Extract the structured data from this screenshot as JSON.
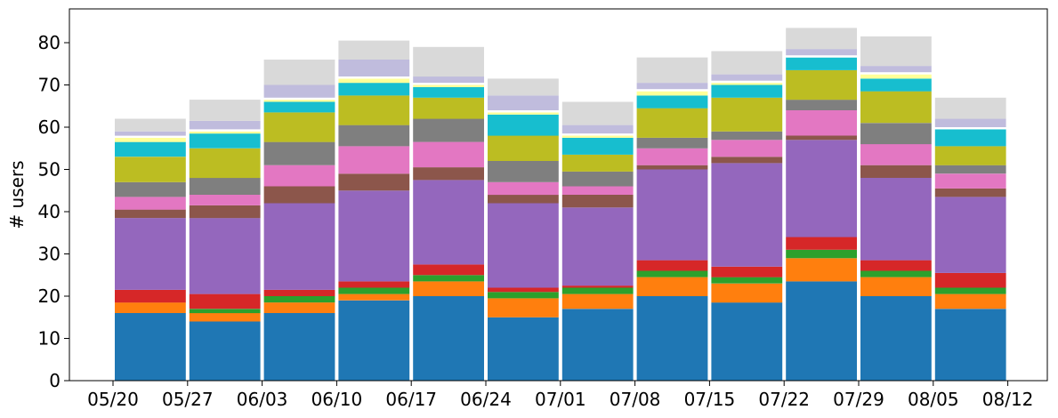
{
  "chart_data": {
    "type": "bar",
    "stacked": true,
    "title": "",
    "xlabel": "",
    "ylabel": "# users",
    "ylim": [
      0,
      88
    ],
    "yticks": [
      0,
      10,
      20,
      30,
      40,
      50,
      60,
      70,
      80
    ],
    "x_tick_labels": [
      "05/20",
      "05/27",
      "06/03",
      "06/10",
      "06/17",
      "06/24",
      "07/01",
      "07/08",
      "07/15",
      "07/22",
      "07/29",
      "08/05",
      "08/12"
    ],
    "grid": false,
    "legend": "none",
    "bars_per_week": 12,
    "series": [
      {
        "color": "#1f77b4",
        "values": [
          16,
          14,
          16,
          19,
          20,
          15,
          17,
          20,
          18.5,
          23.5,
          20,
          17
        ]
      },
      {
        "color": "#ff7f0e",
        "values": [
          2.5,
          2,
          2.5,
          1.5,
          3.5,
          4.5,
          3.5,
          4.5,
          4.5,
          5.5,
          4.5,
          3.5
        ]
      },
      {
        "color": "#2ca02c",
        "values": [
          0,
          1,
          1.5,
          1.5,
          1.5,
          1.5,
          1.5,
          1.5,
          1.5,
          2,
          1.5,
          1.5
        ]
      },
      {
        "color": "#d62728",
        "values": [
          3,
          3.5,
          1.5,
          1.5,
          2.5,
          1,
          0.5,
          2.5,
          2.5,
          3,
          2.5,
          3.5
        ]
      },
      {
        "color": "#9467bd",
        "values": [
          17,
          18,
          20.5,
          21.5,
          20,
          20,
          18.5,
          21.5,
          24.5,
          23,
          19.5,
          18
        ]
      },
      {
        "color": "#8c564b",
        "values": [
          2,
          3,
          4,
          4,
          3,
          2,
          3,
          1,
          1.5,
          1,
          3,
          2
        ]
      },
      {
        "color": "#e377c2",
        "values": [
          3,
          2.5,
          5,
          6.5,
          6,
          3,
          2,
          4,
          4,
          6,
          5,
          3.5
        ]
      },
      {
        "color": "#7f7f7f",
        "values": [
          3.5,
          4,
          5.5,
          5,
          5.5,
          5,
          3.5,
          2.5,
          2,
          2.5,
          5,
          2
        ]
      },
      {
        "color": "#bcbd22",
        "values": [
          6,
          7,
          7,
          7,
          5,
          6,
          4,
          7,
          8,
          7,
          7.5,
          4.5
        ]
      },
      {
        "color": "#17becf",
        "values": [
          3.5,
          3.5,
          2.5,
          3,
          2.5,
          5,
          4,
          3,
          3,
          3,
          3,
          4
        ]
      },
      {
        "color": "#ffff99",
        "values": [
          1,
          0.5,
          0.5,
          1,
          0.5,
          0.5,
          0.5,
          1,
          0.5,
          0,
          1,
          0
        ]
      },
      {
        "color": "#ffffff",
        "values": [
          0.5,
          0.5,
          0.5,
          0.5,
          0.5,
          0.5,
          0.5,
          0.5,
          0.5,
          0.5,
          0.5,
          0.5
        ]
      },
      {
        "color": "#c0bcdd",
        "values": [
          1,
          2,
          3,
          4,
          1.5,
          3.5,
          2,
          1.5,
          1.5,
          1.5,
          1.5,
          2
        ]
      },
      {
        "color": "#d9d9d9",
        "values": [
          3,
          5,
          6,
          4.5,
          7,
          4,
          5.5,
          6,
          5.5,
          5,
          7,
          5
        ]
      }
    ]
  }
}
